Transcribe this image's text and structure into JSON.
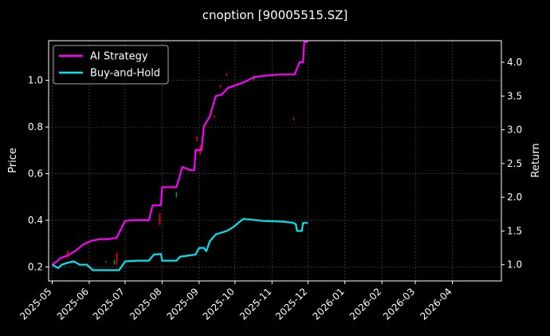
{
  "chart_data": {
    "type": "line",
    "title": "cnoption [90005515.SZ]",
    "ylabel_left": "Price",
    "ylabel_right": "Return",
    "x_range": [
      "2025-04-28",
      "2026-05-12"
    ],
    "y_left_range": [
      0.14,
      1.17
    ],
    "y_right_range": [
      0.76,
      4.32
    ],
    "x_ticks": [
      "2025-05",
      "2025-06",
      "2025-07",
      "2025-08",
      "2025-09",
      "2025-10",
      "2025-11",
      "2025-12",
      "2026-01",
      "2026-02",
      "2026-03",
      "2026-04"
    ],
    "y_left_ticks": [
      0.2,
      0.4,
      0.6,
      0.8,
      1.0
    ],
    "y_right_ticks": [
      1.0,
      1.5,
      2.0,
      2.5,
      3.0,
      3.5,
      4.0
    ],
    "grid": true,
    "legend_position": "top-left",
    "series": [
      {
        "name": "AI Strategy",
        "color": "#ff00ff",
        "axis": "right",
        "points": [
          [
            "2025-05-01",
            1.0
          ],
          [
            "2025-05-05",
            1.05
          ],
          [
            "2025-05-08",
            1.1
          ],
          [
            "2025-05-13",
            1.13
          ],
          [
            "2025-05-20",
            1.2
          ],
          [
            "2025-05-27",
            1.3
          ],
          [
            "2025-06-02",
            1.35
          ],
          [
            "2025-06-10",
            1.38
          ],
          [
            "2025-06-18",
            1.38
          ],
          [
            "2025-06-24",
            1.4
          ],
          [
            "2025-07-01",
            1.65
          ],
          [
            "2025-07-07",
            1.66
          ],
          [
            "2025-07-15",
            1.66
          ],
          [
            "2025-07-21",
            1.66
          ],
          [
            "2025-07-24",
            1.88
          ],
          [
            "2025-07-31",
            1.88
          ],
          [
            "2025-08-01",
            2.15
          ],
          [
            "2025-08-08",
            2.15
          ],
          [
            "2025-08-13",
            2.15
          ],
          [
            "2025-08-18",
            2.45
          ],
          [
            "2025-08-25",
            2.4
          ],
          [
            "2025-08-28",
            2.4
          ],
          [
            "2025-08-29",
            2.7
          ],
          [
            "2025-09-03",
            2.7
          ],
          [
            "2025-09-05",
            3.05
          ],
          [
            "2025-09-10",
            3.2
          ],
          [
            "2025-09-15",
            3.5
          ],
          [
            "2025-09-20",
            3.52
          ],
          [
            "2025-09-25",
            3.62
          ],
          [
            "2025-09-30",
            3.65
          ],
          [
            "2025-10-08",
            3.7
          ],
          [
            "2025-10-17",
            3.78
          ],
          [
            "2025-10-25",
            3.8
          ],
          [
            "2025-11-07",
            3.82
          ],
          [
            "2025-11-15",
            3.82
          ],
          [
            "2025-11-20",
            3.82
          ],
          [
            "2025-11-24",
            4.0
          ],
          [
            "2025-11-27",
            4.0
          ],
          [
            "2025-11-28",
            4.3
          ],
          [
            "2025-12-01",
            4.3
          ]
        ]
      },
      {
        "name": "Buy-and-Hold",
        "color": "#00e5ee",
        "axis": "right",
        "points": [
          [
            "2025-05-01",
            1.0
          ],
          [
            "2025-05-06",
            0.95
          ],
          [
            "2025-05-09",
            1.0
          ],
          [
            "2025-05-14",
            1.03
          ],
          [
            "2025-05-19",
            1.05
          ],
          [
            "2025-05-24",
            1.0
          ],
          [
            "2025-05-30",
            1.0
          ],
          [
            "2025-06-04",
            0.92
          ],
          [
            "2025-06-15",
            0.92
          ],
          [
            "2025-06-26",
            0.92
          ],
          [
            "2025-07-01",
            1.05
          ],
          [
            "2025-07-12",
            1.06
          ],
          [
            "2025-07-21",
            1.06
          ],
          [
            "2025-07-25",
            1.15
          ],
          [
            "2025-07-31",
            1.16
          ],
          [
            "2025-08-01",
            1.06
          ],
          [
            "2025-08-13",
            1.06
          ],
          [
            "2025-08-16",
            1.12
          ],
          [
            "2025-08-29",
            1.15
          ],
          [
            "2025-09-01",
            1.25
          ],
          [
            "2025-09-05",
            1.25
          ],
          [
            "2025-09-07",
            1.2
          ],
          [
            "2025-09-10",
            1.35
          ],
          [
            "2025-09-15",
            1.45
          ],
          [
            "2025-09-24",
            1.5
          ],
          [
            "2025-09-29",
            1.55
          ],
          [
            "2025-10-08",
            1.68
          ],
          [
            "2025-10-25",
            1.65
          ],
          [
            "2025-11-10",
            1.64
          ],
          [
            "2025-11-19",
            1.62
          ],
          [
            "2025-11-21",
            1.6
          ],
          [
            "2025-11-22",
            1.5
          ],
          [
            "2025-11-26",
            1.5
          ],
          [
            "2025-11-27",
            1.62
          ],
          [
            "2025-12-01",
            1.62
          ]
        ]
      }
    ],
    "candles": [
      {
        "date": "2025-05-14",
        "open": 0.24,
        "close": 0.27,
        "color": "#ff0000"
      },
      {
        "date": "2025-06-15",
        "open": 0.225,
        "close": 0.22,
        "color": "#00aa00"
      },
      {
        "date": "2025-06-22",
        "open": 0.23,
        "close": 0.21,
        "color": "#00aa00"
      },
      {
        "date": "2025-06-24",
        "open": 0.21,
        "close": 0.26,
        "color": "#ff0000"
      },
      {
        "date": "2025-07-30",
        "open": 0.43,
        "close": 0.38,
        "color": "#ff0000"
      },
      {
        "date": "2025-08-13",
        "open": 0.52,
        "close": 0.5,
        "color": "#00aa00"
      },
      {
        "date": "2025-08-30",
        "open": 0.76,
        "close": 0.74,
        "color": "#ff0000"
      },
      {
        "date": "2025-09-02",
        "open": 0.72,
        "close": 0.68,
        "color": "#ff0000"
      },
      {
        "date": "2025-09-14",
        "open": 0.84,
        "close": 0.85,
        "color": "#ff0000"
      },
      {
        "date": "2025-09-19",
        "open": 0.97,
        "close": 0.98,
        "color": "#ff0000"
      },
      {
        "date": "2025-09-24",
        "open": 1.03,
        "close": 1.02,
        "color": "#ff0000"
      },
      {
        "date": "2025-10-17",
        "open": 1.0,
        "close": 1.02,
        "color": "#00aa00"
      },
      {
        "date": "2025-11-19",
        "open": 0.84,
        "close": 0.83,
        "color": "#ff0000"
      }
    ]
  }
}
